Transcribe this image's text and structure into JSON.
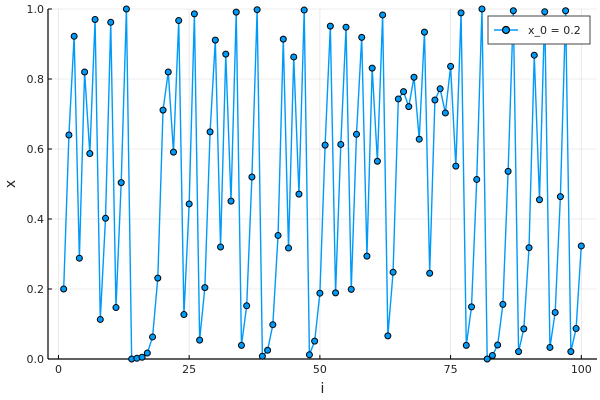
{
  "chart_data": {
    "type": "line",
    "title": "",
    "xlabel": "i",
    "ylabel": "x",
    "xlim": [
      -2,
      103
    ],
    "ylim": [
      0,
      1
    ],
    "x_ticks": [
      0,
      25,
      50,
      75,
      100
    ],
    "y_ticks": [
      0.0,
      0.2,
      0.4,
      0.6,
      0.8,
      1.0
    ],
    "x_tick_labels": [
      "0",
      "25",
      "50",
      "75",
      "100"
    ],
    "y_tick_labels": [
      "0.0",
      "0.2",
      "0.4",
      "0.6",
      "0.8",
      "1.0"
    ],
    "grid": true,
    "legend_position": "top-right",
    "series": [
      {
        "name": "x_0 = 0.2",
        "color": "#009af9",
        "marker": "circle",
        "x": [
          1,
          2,
          3,
          4,
          5,
          6,
          7,
          8,
          9,
          10,
          11,
          12,
          13,
          14,
          15,
          16,
          17,
          18,
          19,
          20,
          21,
          22,
          23,
          24,
          25,
          26,
          27,
          28,
          29,
          30,
          31,
          32,
          33,
          34,
          35,
          36,
          37,
          38,
          39,
          40,
          41,
          42,
          43,
          44,
          45,
          46,
          47,
          48,
          49,
          50,
          51,
          52,
          53,
          54,
          55,
          56,
          57,
          58,
          59,
          60,
          61,
          62,
          63,
          64,
          65,
          66,
          67,
          68,
          69,
          70,
          71,
          72,
          73,
          74,
          75,
          76,
          77,
          78,
          79,
          80,
          81,
          82,
          83,
          84,
          85,
          86,
          87,
          88,
          89,
          90,
          91,
          92,
          93,
          94,
          95,
          96,
          97,
          98,
          99,
          100
        ],
        "values": [
          0.2,
          0.64,
          0.922,
          0.288,
          0.82,
          0.587,
          0.97,
          0.113,
          0.402,
          0.962,
          0.147,
          0.504,
          1.0,
          0.0,
          0.002,
          0.005,
          0.017,
          0.063,
          0.231,
          0.711,
          0.82,
          0.591,
          0.967,
          0.127,
          0.443,
          0.986,
          0.054,
          0.204,
          0.649,
          0.911,
          0.32,
          0.871,
          0.451,
          0.991,
          0.039,
          0.152,
          0.52,
          0.998,
          0.008,
          0.025,
          0.098,
          0.353,
          0.914,
          0.317,
          0.863,
          0.471,
          0.997,
          0.012,
          0.051,
          0.188,
          0.611,
          0.951,
          0.189,
          0.613,
          0.948,
          0.199,
          0.642,
          0.919,
          0.294,
          0.831,
          0.565,
          0.983,
          0.066,
          0.248,
          0.743,
          0.764,
          0.721,
          0.805,
          0.628,
          0.934,
          0.245,
          0.74,
          0.772,
          0.703,
          0.836,
          0.551,
          0.989,
          0.039,
          0.149,
          0.513,
          1.0,
          0.0,
          0.01,
          0.04,
          0.156,
          0.536,
          0.995,
          0.021,
          0.086,
          0.318,
          0.868,
          0.455,
          0.992,
          0.033,
          0.133,
          0.464,
          0.995,
          0.021,
          0.087,
          0.323
        ]
      }
    ]
  }
}
